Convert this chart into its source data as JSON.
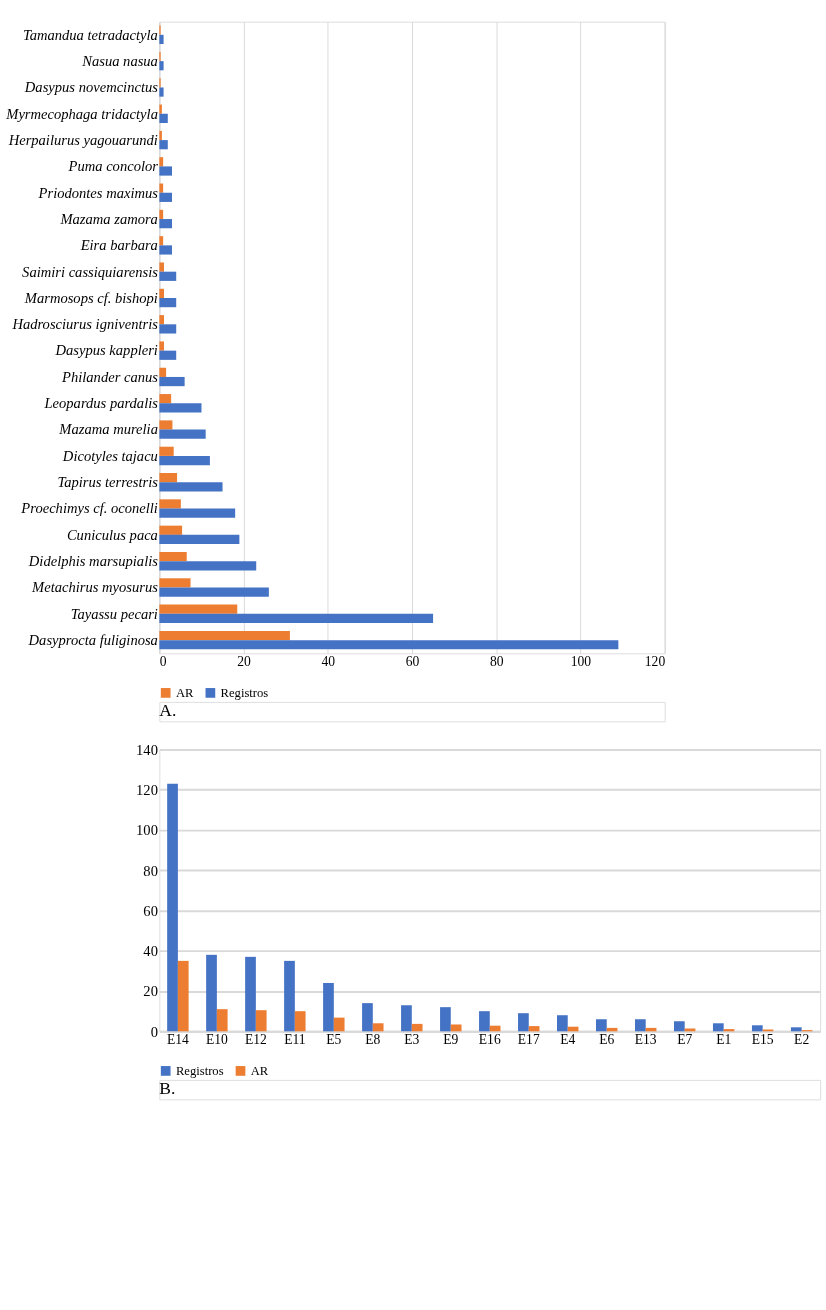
{
  "chart_data": [
    {
      "type": "bar",
      "orientation": "horizontal",
      "categories": [
        "Tamandua tetradactyla",
        "Nasua nasua",
        "Dasypus novemcinctus",
        "Myrmecophaga tridactyla",
        "Herpailurus yagouarundi",
        "Puma concolor",
        "Priodontes maximus",
        "Mazama zamora",
        "Eira barbara",
        "Saimiri cassiquiarensis",
        "Marmosops cf. bishopi",
        "Hadrosciurus igniventris",
        "Dasypus kappleri",
        "Philander canus",
        "Leopardus pardalis",
        "Mazama murelia",
        "Dicotyles tajacu",
        "Tapirus terrestris",
        "Proechimys cf. oconelli",
        "Cuniculus paca",
        "Didelphis marsupialis",
        "Metachirus myosurus",
        "Tayassu pecari",
        "Dasyprocta fuliginosa"
      ],
      "series": [
        {
          "name": "AR",
          "color": "#ed7d31",
          "values": [
            0.3,
            0.3,
            0.3,
            0.6,
            0.6,
            0.9,
            0.9,
            0.9,
            0.9,
            1.1,
            1.1,
            1.1,
            1.1,
            1.6,
            2.8,
            3.1,
            3.4,
            4.2,
            5.1,
            5.4,
            6.5,
            7.4,
            18.5,
            31
          ]
        },
        {
          "name": "Registros",
          "color": "#4472c4",
          "values": [
            1,
            1,
            1,
            2,
            2,
            3,
            3,
            3,
            3,
            4,
            4,
            4,
            4,
            6,
            10,
            11,
            12,
            15,
            18,
            19,
            23,
            26,
            65,
            109
          ]
        }
      ],
      "xlim": [
        0,
        120
      ],
      "xticks": [
        0,
        20,
        40,
        60,
        80,
        100,
        120
      ],
      "grid": "x",
      "legend": "bottom",
      "annotations": [
        "A."
      ]
    },
    {
      "type": "bar",
      "categories": [
        "E14",
        "E10",
        "E12",
        "E11",
        "E5",
        "E8",
        "E3",
        "E9",
        "E16",
        "E17",
        "E4",
        "E6",
        "E13",
        "E7",
        "E1",
        "E15",
        "E2"
      ],
      "series": [
        {
          "name": "Registros",
          "color": "#4472c4",
          "values": [
            123,
            38,
            37,
            35,
            24,
            14,
            13,
            12,
            10,
            9,
            8,
            6,
            6,
            5,
            4,
            3,
            2
          ]
        },
        {
          "name": "AR",
          "color": "#ed7d31",
          "values": [
            35,
            11,
            10.5,
            10,
            6.8,
            4,
            3.7,
            3.4,
            2.8,
            2.6,
            2.3,
            1.7,
            1.7,
            1.4,
            1.1,
            0.9,
            0.6
          ]
        }
      ],
      "ylim": [
        0,
        140
      ],
      "yticks": [
        0,
        20,
        40,
        60,
        80,
        100,
        120,
        140
      ],
      "grid": "y",
      "legend": "bottom",
      "annotations": [
        "B."
      ]
    }
  ]
}
